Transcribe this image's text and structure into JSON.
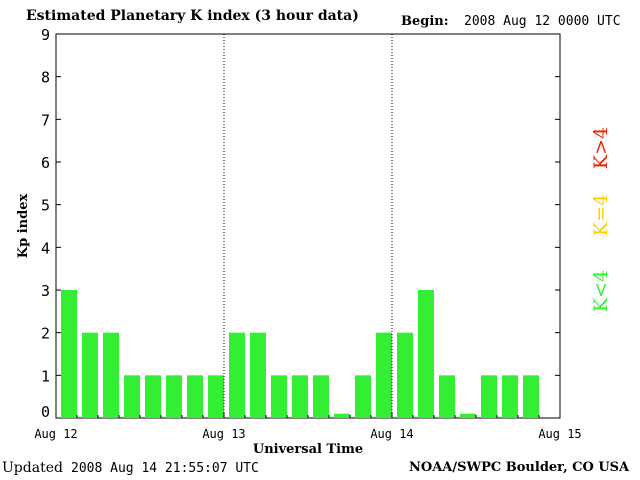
{
  "header": {
    "title": "Estimated Planetary K index (3 hour data)",
    "begin_label": "Begin:",
    "begin_value": "2008 Aug 12 0000 UTC"
  },
  "footer": {
    "updated_label": "Updated",
    "updated_value": "2008 Aug 14 21:55:07 UTC",
    "source": "NOAA/SWPC Boulder, CO USA"
  },
  "legend": [
    {
      "label": "K<4",
      "color": "#33ee33"
    },
    {
      "label": "K=4",
      "color": "#ffcc00"
    },
    {
      "label": "K>4",
      "color": "#ee2200"
    }
  ],
  "chart_data": {
    "type": "bar",
    "title": "Estimated Planetary K index (3 hour data)",
    "xlabel": "Universal Time",
    "ylabel": "Kp index",
    "ylim": [
      0,
      9
    ],
    "yticks": [
      0,
      1,
      2,
      3,
      4,
      5,
      6,
      7,
      8,
      9
    ],
    "xticks": [
      "Aug 12",
      "Aug 13",
      "Aug 14",
      "Aug 15"
    ],
    "day_dividers": true,
    "bar_color": "#33ee33",
    "values": [
      3,
      2,
      2,
      1,
      1,
      1,
      1,
      1,
      2,
      2,
      1,
      1,
      1,
      0.1,
      1,
      2,
      2,
      3,
      1,
      0.1,
      1,
      1,
      1
    ]
  }
}
